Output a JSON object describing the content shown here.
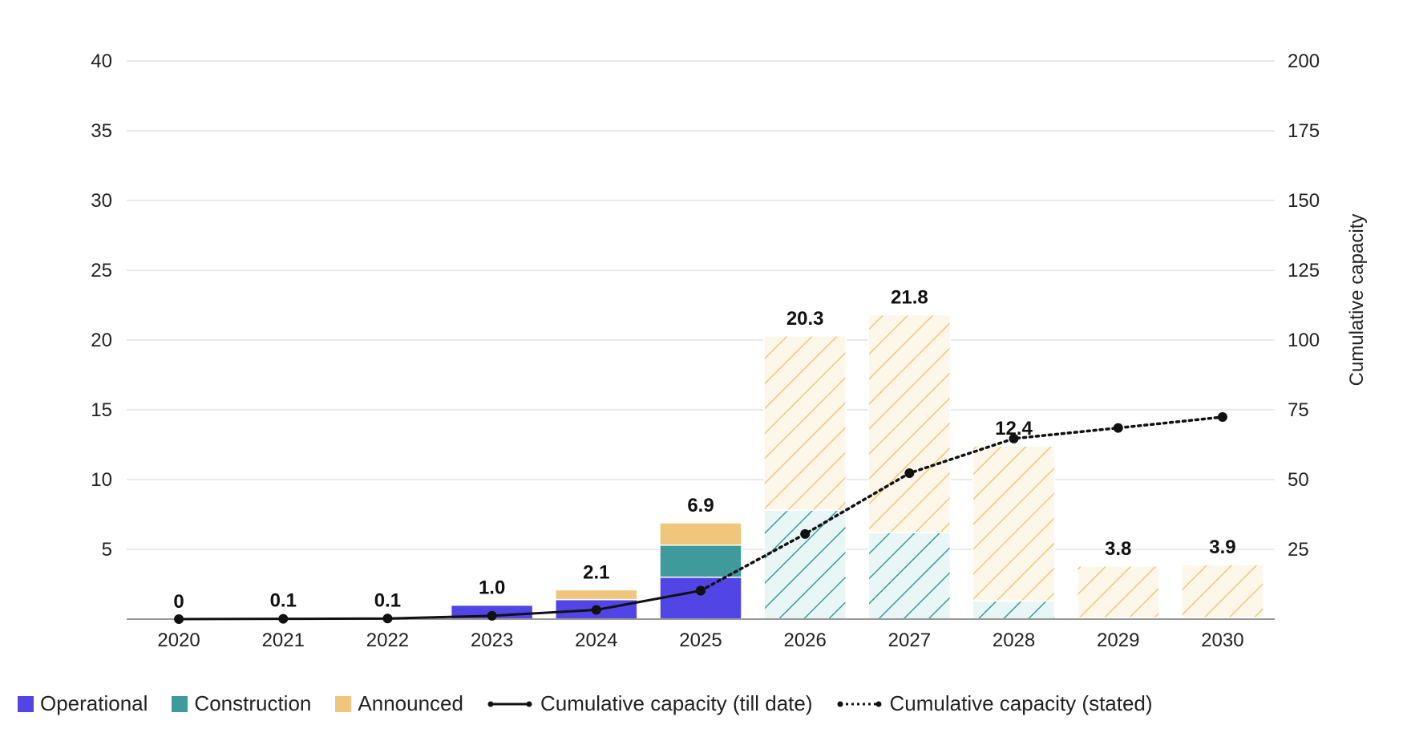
{
  "chart_data": {
    "type": "bar",
    "categories": [
      "2020",
      "2021",
      "2022",
      "2023",
      "2024",
      "2025",
      "2026",
      "2027",
      "2028",
      "2029",
      "2030"
    ],
    "series": [
      {
        "name": "Operational",
        "color": "#5146e5",
        "values": [
          0,
          0.05,
          0.05,
          1.0,
          1.4,
          3.0,
          0,
          0,
          0,
          0,
          0
        ]
      },
      {
        "name": "Construction",
        "color": "#3f9a9c",
        "values": [
          0,
          0.05,
          0.05,
          0,
          0,
          2.3,
          7.8,
          6.2,
          1.3,
          0.1,
          0.1
        ]
      },
      {
        "name": "Announced",
        "color": "#f0c67c",
        "values": [
          0,
          0,
          0,
          0,
          0.7,
          1.6,
          12.5,
          15.6,
          11.1,
          3.7,
          3.8
        ]
      },
      {
        "name": "Cumulative capacity (till date)",
        "color": "#111111",
        "axis": "right",
        "x": [
          "2020",
          "2021",
          "2022",
          "2023",
          "2024",
          "2025"
        ],
        "values": [
          0,
          0.1,
          0.2,
          1.2,
          3.3,
          10.2
        ]
      },
      {
        "name": "Cumulative capacity (stated)",
        "color": "#111111",
        "axis": "right",
        "x": [
          "2025",
          "2026",
          "2027",
          "2028",
          "2029",
          "2030"
        ],
        "values": [
          10.2,
          30.5,
          52.3,
          64.7,
          68.5,
          72.4
        ]
      }
    ],
    "hatched_from": "2026",
    "totals": [
      "0",
      "0.1",
      "0.1",
      "1.0",
      "2.1",
      "6.9",
      "20.3",
      "21.8",
      "12.4",
      "3.8",
      "3.9"
    ],
    "y_left": {
      "min": 0,
      "max": 40,
      "ticks": [
        "5",
        "10",
        "15",
        "20",
        "25",
        "30",
        "35",
        "40"
      ]
    },
    "y_right": {
      "min": 0,
      "max": 200,
      "ticks": [
        "25",
        "50",
        "75",
        "100",
        "125",
        "150",
        "175",
        "200"
      ],
      "label": "Cumulative capacity"
    },
    "grid": true,
    "legend_position": "bottom-left"
  },
  "legend": {
    "items": [
      "Operational",
      "Construction",
      "Announced",
      "Cumulative capacity (till date)",
      "Cumulative capacity (stated)"
    ]
  }
}
